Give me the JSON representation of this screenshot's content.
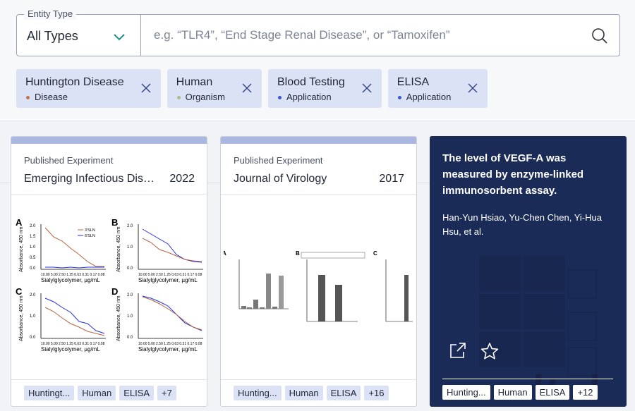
{
  "search": {
    "entity_label": "Entity Type",
    "entity_value": "All Types",
    "placeholder": "e.g. “TLR4”, “End Stage Renal Disease”, or “Tamoxifen”",
    "value": ""
  },
  "chips": [
    {
      "name": "Huntington Disease",
      "type": "Disease",
      "dot_color": "#c2744f"
    },
    {
      "name": "Human",
      "type": "Organism",
      "dot_color": "#a8be8a"
    },
    {
      "name": "Blood Testing",
      "type": "Application",
      "dot_color": "#3a55d8"
    },
    {
      "name": "ELISA",
      "type": "Application",
      "dot_color": "#3a55d8"
    }
  ],
  "cards": [
    {
      "kind": "Published Experiment",
      "journal": "Emerging Infectious Disea...",
      "year": "2022",
      "tags": [
        "Huntingt...",
        "Human",
        "ELISA",
        "+7"
      ],
      "figure": {
        "panels": [
          "A",
          "B",
          "C",
          "D"
        ],
        "ylabel": "Absorbance, 450 nm",
        "xlabel": "Sialylglycolymer, µg/mL",
        "legend": [
          "3′SLN",
          "6′SLN"
        ],
        "yticks": [
          "2.0",
          "1.5",
          "1.0",
          "0.5",
          "0.0"
        ],
        "xticks": [
          "10.00",
          "5.00",
          "2.50",
          "1.25",
          "0.63",
          "0.31",
          "0.17",
          "0.08"
        ]
      }
    },
    {
      "kind": "Published Experiment",
      "journal": "Journal of Virology",
      "year": "2017",
      "tags": [
        "Hunting...",
        "Human",
        "ELISA",
        "+16"
      ],
      "figure": {
        "panels": [
          "A",
          "B",
          "C"
        ]
      }
    }
  ],
  "dark_card": {
    "title": "The level of VEGF-A was measured by enzyme-linked immunosorbent assay.",
    "authors": "Han-Yun Hsiao, Yu-Chen Chen, Yi-Hua Hsu, et al.",
    "tags": [
      "Hunting...",
      "Human",
      "ELISA",
      "+12"
    ],
    "actions": [
      "open-in-new-icon",
      "star-icon"
    ]
  }
}
